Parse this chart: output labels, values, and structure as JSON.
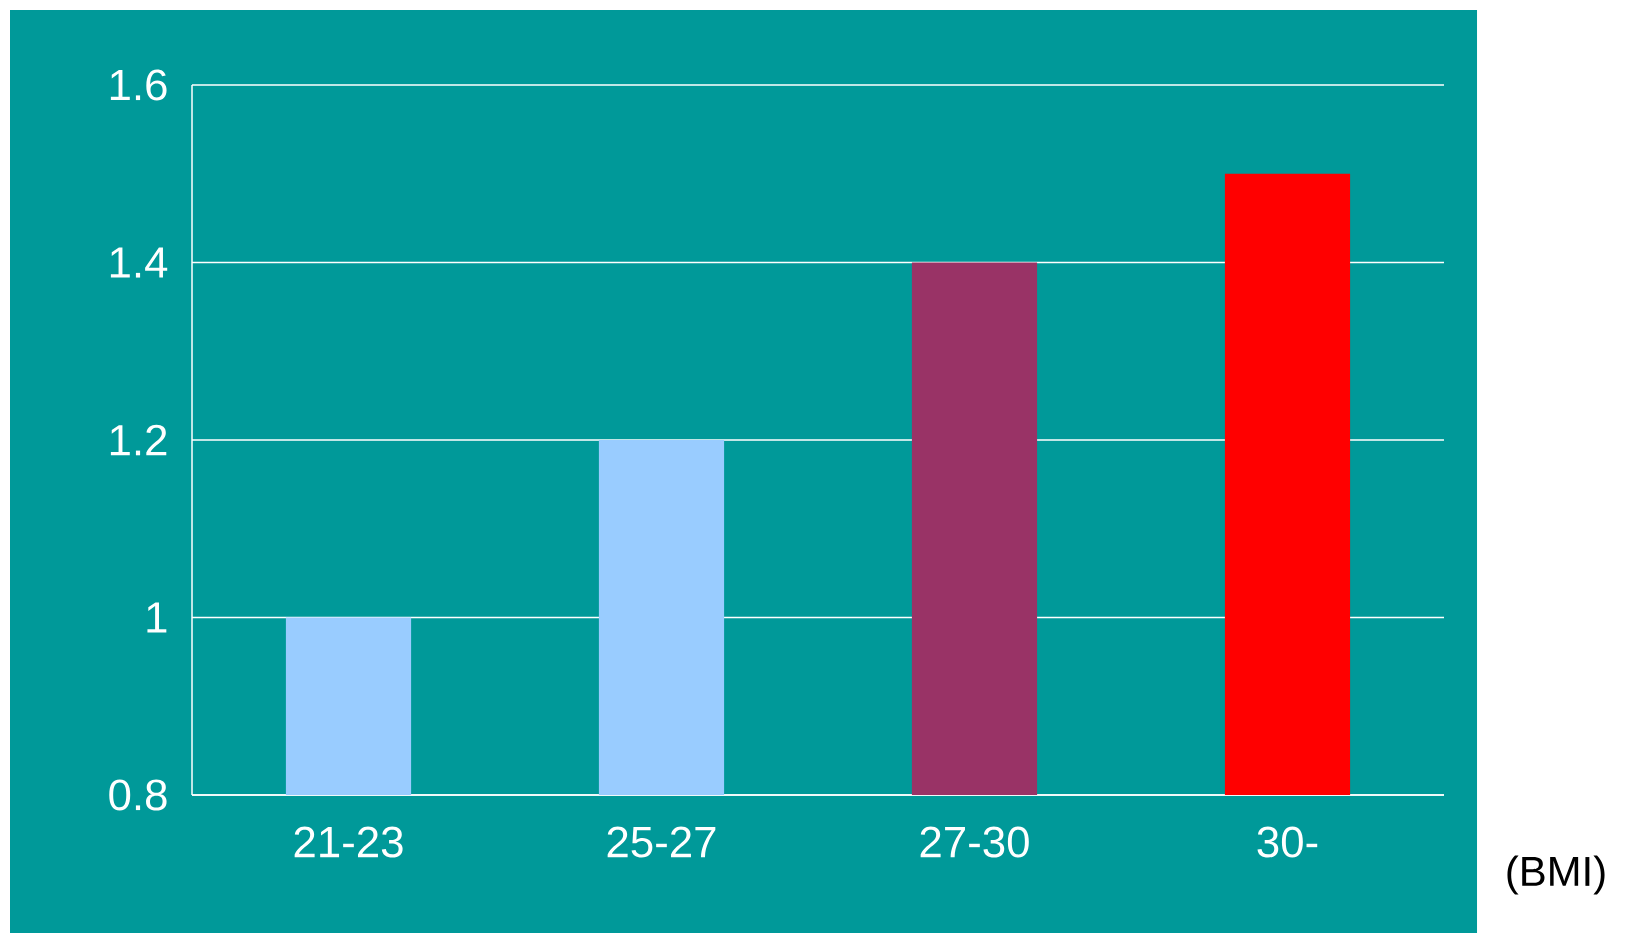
{
  "chart_data": {
    "type": "bar",
    "categories": [
      "21-23",
      "25-27",
      "27-30",
      "30-"
    ],
    "values": [
      1.0,
      1.2,
      1.4,
      1.5
    ],
    "colors": [
      "#99ccff",
      "#99ccff",
      "#993366",
      "#ff0000"
    ],
    "xlabel": "(BMI)",
    "ylim": [
      0.8,
      1.6
    ],
    "yticks": [
      0.8,
      1,
      1.2,
      1.4,
      1.6
    ],
    "grid": "y"
  }
}
